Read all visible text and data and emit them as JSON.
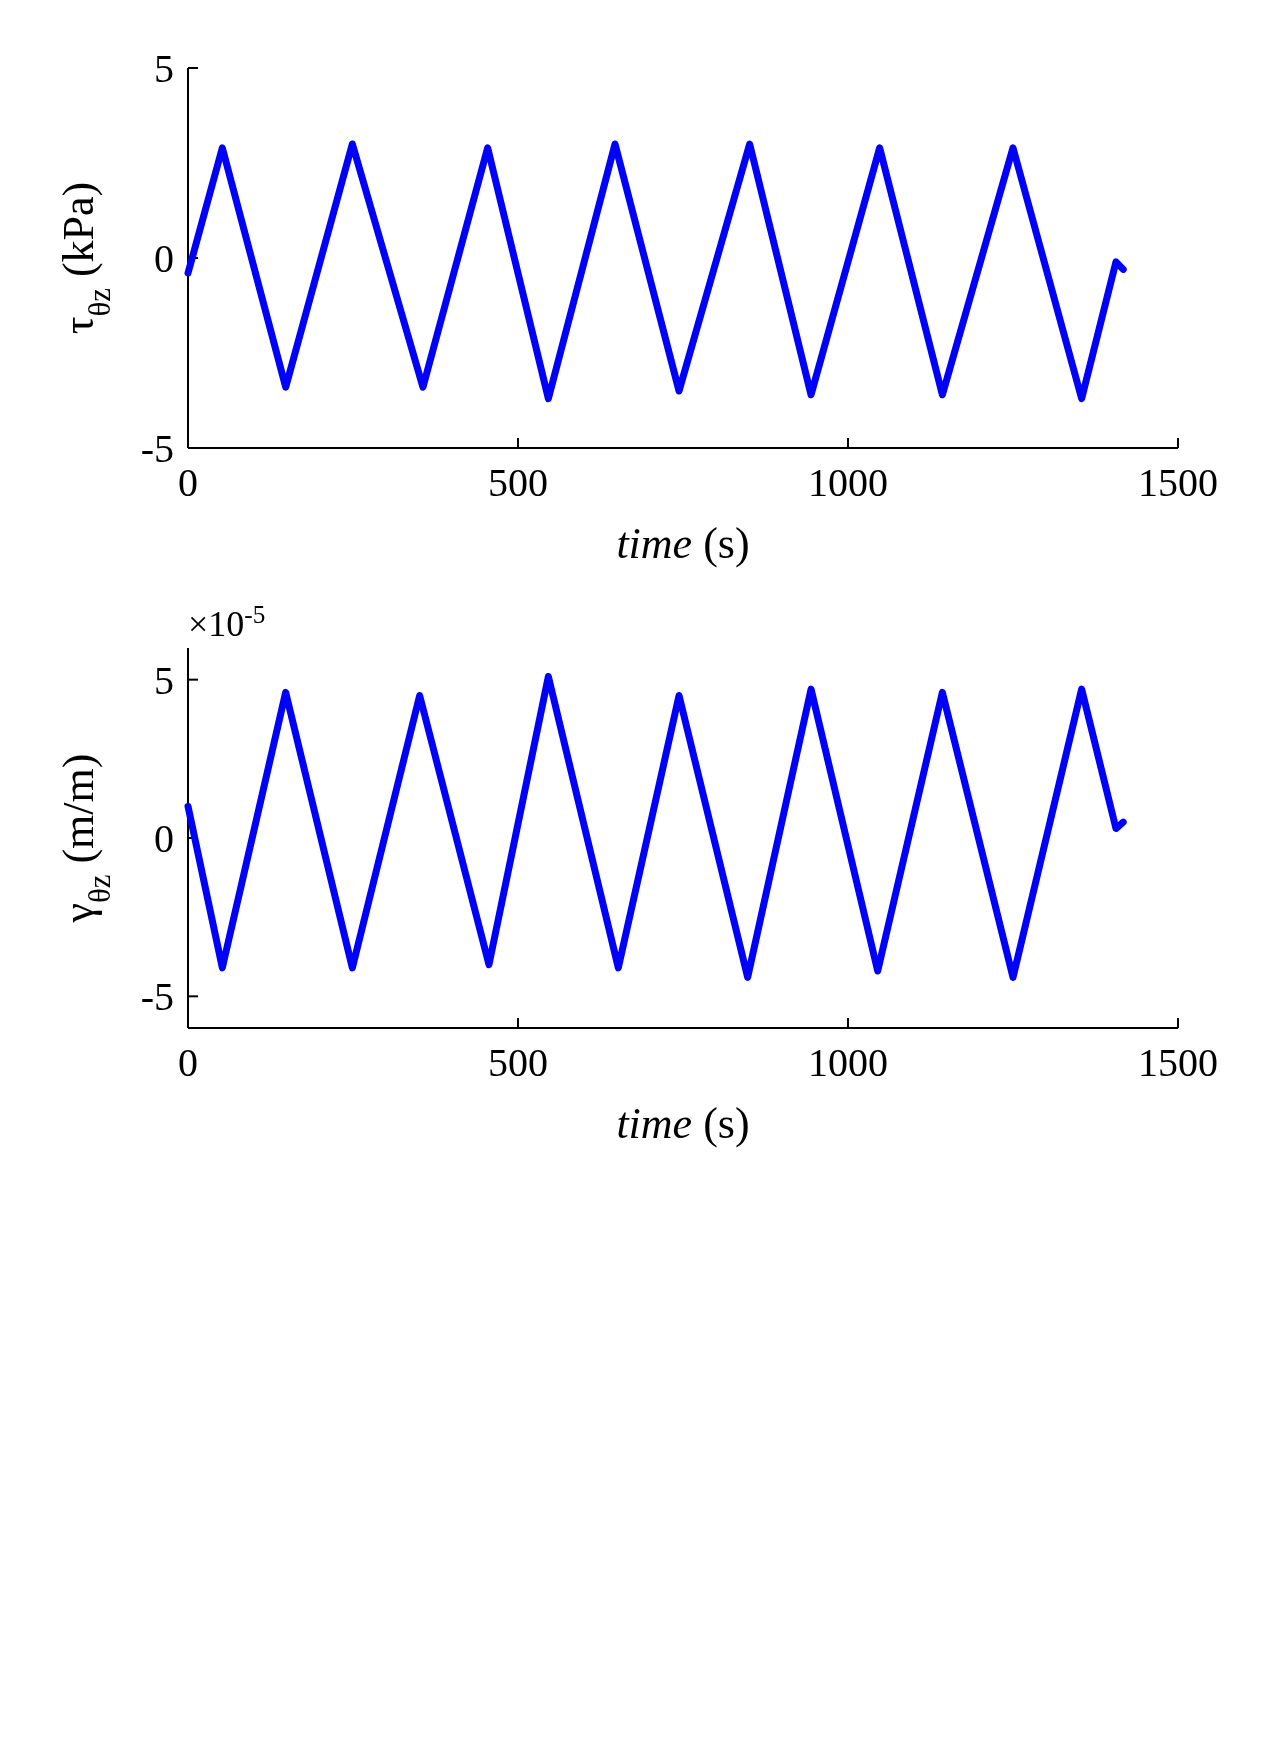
{
  "chart_data": [
    {
      "type": "line",
      "xlabel": "time (s)",
      "ylabel": "τ$_{θz}$ (kPa)",
      "xlim": [
        0,
        1500
      ],
      "xticks": [
        0,
        500,
        1000,
        1500
      ],
      "ylim": [
        -5,
        5
      ],
      "yticks": [
        -5,
        0,
        5
      ],
      "series": [
        {
          "color": "#0000ff",
          "x": [
            0,
            52,
            148,
            249,
            356,
            454,
            546,
            647,
            744,
            851,
            944,
            1048,
            1143,
            1250,
            1354,
            1406,
            1417
          ],
          "values": [
            -0.4,
            2.9,
            -3.4,
            3.0,
            -3.4,
            2.9,
            -3.7,
            3.0,
            -3.5,
            3.0,
            -3.6,
            2.9,
            -3.6,
            2.9,
            -3.7,
            -0.1,
            -0.3
          ]
        }
      ]
    },
    {
      "type": "line",
      "xlabel": "time (s)",
      "ylabel": "γ$_{θz}$ (m/m)",
      "xlim": [
        0,
        1500
      ],
      "xticks": [
        0,
        500,
        1000,
        1500
      ],
      "ylim": [
        -6,
        6
      ],
      "yticks": [
        -5,
        0,
        5
      ],
      "annotations": [
        "×10$^{-5}$"
      ],
      "series": [
        {
          "color": "#0000ff",
          "x": [
            0,
            52,
            148,
            249,
            351,
            456,
            546,
            652,
            744,
            848,
            944,
            1045,
            1143,
            1250,
            1354,
            1406,
            1417
          ],
          "values": [
            1.0,
            -4.1,
            4.6,
            -4.1,
            4.5,
            -4.0,
            5.1,
            -4.1,
            4.5,
            -4.4,
            4.7,
            -4.2,
            4.6,
            -4.4,
            4.7,
            0.3,
            0.5
          ]
        }
      ]
    }
  ]
}
